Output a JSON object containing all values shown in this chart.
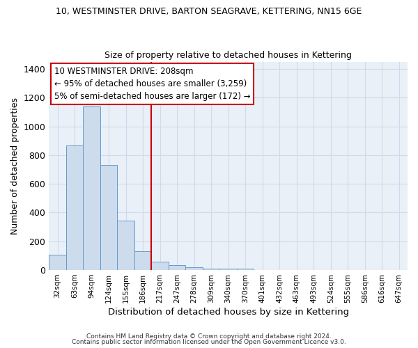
{
  "title1": "10, WESTMINSTER DRIVE, BARTON SEAGRAVE, KETTERING, NN15 6GE",
  "title2": "Size of property relative to detached houses in Kettering",
  "xlabel": "Distribution of detached houses by size in Kettering",
  "ylabel": "Number of detached properties",
  "footer1": "Contains HM Land Registry data © Crown copyright and database right 2024.",
  "footer2": "Contains public sector information licensed under the Open Government Licence v3.0.",
  "annotation_line1": "10 WESTMINSTER DRIVE: 208sqm",
  "annotation_line2": "← 95% of detached houses are smaller (3,259)",
  "annotation_line3": "5% of semi-detached houses are larger (172) →",
  "bar_color": "#ccdcec",
  "bar_edge_color": "#6699cc",
  "vline_color": "#cc0000",
  "vline_x_index": 6,
  "categories": [
    "32sqm",
    "63sqm",
    "94sqm",
    "124sqm",
    "155sqm",
    "186sqm",
    "217sqm",
    "247sqm",
    "278sqm",
    "309sqm",
    "340sqm",
    "370sqm",
    "401sqm",
    "432sqm",
    "463sqm",
    "493sqm",
    "524sqm",
    "555sqm",
    "586sqm",
    "616sqm",
    "647sqm"
  ],
  "values": [
    105,
    865,
    1140,
    730,
    345,
    130,
    60,
    33,
    20,
    12,
    8,
    10,
    0,
    0,
    0,
    0,
    0,
    0,
    0,
    0,
    0
  ],
  "ylim": [
    0,
    1450
  ],
  "yticks": [
    0,
    200,
    400,
    600,
    800,
    1000,
    1200,
    1400
  ],
  "grid_color": "#d0daea",
  "background_color": "#eaf0f8",
  "figsize": [
    6.0,
    5.0
  ],
  "dpi": 100
}
